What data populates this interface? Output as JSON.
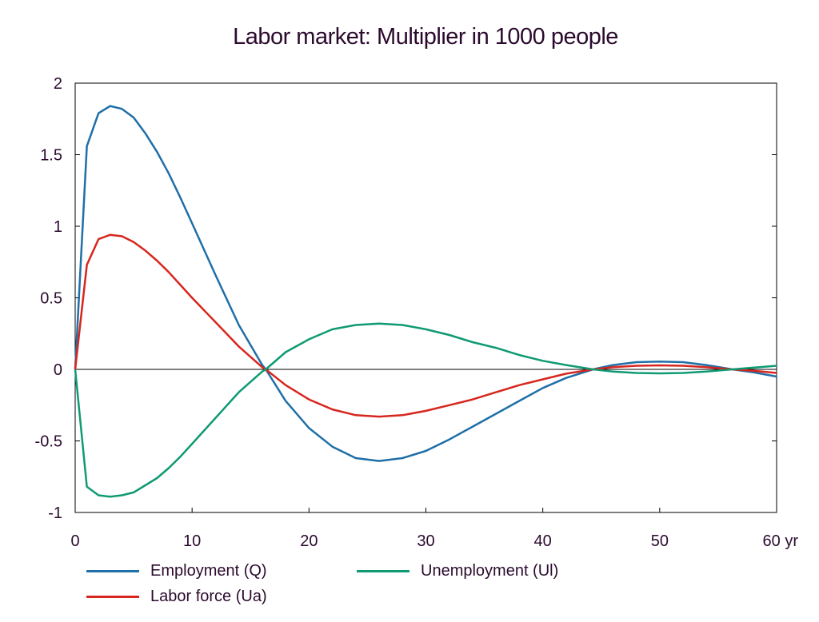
{
  "chart_data": {
    "type": "line",
    "title": "Labor market: Multiplier in 1000 people",
    "xlabel": "",
    "ylabel": "",
    "xlim": [
      0,
      60
    ],
    "ylim": [
      -1,
      2
    ],
    "x_ticks": [
      "0",
      "10",
      "20",
      "30",
      "40",
      "50",
      "60 yr"
    ],
    "x_tick_values": [
      0,
      10,
      20,
      30,
      40,
      50,
      60
    ],
    "y_ticks": [
      "2",
      "1.5",
      "1",
      "0.5",
      "0",
      "-0.5",
      "-1"
    ],
    "y_tick_values": [
      2,
      1.5,
      1,
      0.5,
      0,
      -0.5,
      -1
    ],
    "zero_line": true,
    "grid": false,
    "legend_position": "bottom",
    "x": [
      0,
      1,
      2,
      3,
      4,
      5,
      6,
      7,
      8,
      9,
      10,
      12,
      14,
      16,
      16.3,
      18,
      20,
      22,
      24,
      26,
      28,
      30,
      32,
      34,
      36,
      38,
      40,
      42,
      44.3,
      46,
      48,
      50,
      52,
      54,
      56.2,
      58,
      60
    ],
    "series": [
      {
        "name": "Employment (Q)",
        "color": "#1f6fa8",
        "values": [
          0,
          1.56,
          1.79,
          1.84,
          1.82,
          1.76,
          1.65,
          1.52,
          1.37,
          1.2,
          1.02,
          0.66,
          0.31,
          0.03,
          0,
          -0.22,
          -0.41,
          -0.54,
          -0.62,
          -0.64,
          -0.62,
          -0.57,
          -0.49,
          -0.4,
          -0.31,
          -0.22,
          -0.13,
          -0.06,
          0,
          0.03,
          0.05,
          0.055,
          0.05,
          0.03,
          0,
          -0.02,
          -0.05
        ]
      },
      {
        "name": "Labor force (Ua)",
        "color": "#d7261e",
        "values": [
          0,
          0.73,
          0.91,
          0.94,
          0.93,
          0.89,
          0.83,
          0.76,
          0.68,
          0.59,
          0.5,
          0.33,
          0.16,
          0.015,
          0,
          -0.11,
          -0.21,
          -0.28,
          -0.32,
          -0.33,
          -0.32,
          -0.29,
          -0.25,
          -0.21,
          -0.16,
          -0.11,
          -0.07,
          -0.03,
          0,
          0.015,
          0.025,
          0.028,
          0.025,
          0.015,
          0,
          -0.01,
          -0.025
        ]
      },
      {
        "name": "Unemployment (Ul)",
        "color": "#0f9a73",
        "values": [
          0,
          -0.82,
          -0.88,
          -0.89,
          -0.88,
          -0.86,
          -0.81,
          -0.76,
          -0.69,
          -0.61,
          -0.52,
          -0.34,
          -0.16,
          -0.015,
          0,
          0.12,
          0.21,
          0.28,
          0.31,
          0.32,
          0.31,
          0.28,
          0.24,
          0.19,
          0.15,
          0.1,
          0.06,
          0.03,
          0,
          -0.015,
          -0.025,
          -0.028,
          -0.025,
          -0.015,
          0,
          0.012,
          0.025
        ]
      }
    ]
  }
}
